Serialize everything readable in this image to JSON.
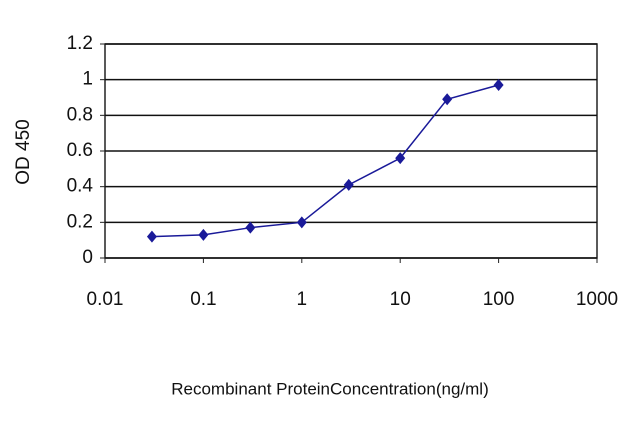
{
  "chart_data": {
    "type": "line",
    "x_label": "Recombinant ProteinConcentration(ng/ml)",
    "y_label": "OD 450",
    "x": [
      0.03,
      0.1,
      0.3,
      1,
      3,
      10,
      30,
      100
    ],
    "series": [
      {
        "color": "#1a1a99",
        "values": [
          0.12,
          0.13,
          0.17,
          0.2,
          0.41,
          0.56,
          0.89,
          0.97
        ]
      }
    ],
    "xlim": [
      0.01,
      1000
    ],
    "xticks": [
      0.01,
      0.1,
      1,
      10,
      100,
      1000
    ],
    "xlog": true,
    "ylim": [
      0,
      1.2
    ],
    "yticks": [
      0,
      0.2,
      0.4,
      0.6,
      0.8,
      1,
      1.2
    ],
    "grid": true
  }
}
